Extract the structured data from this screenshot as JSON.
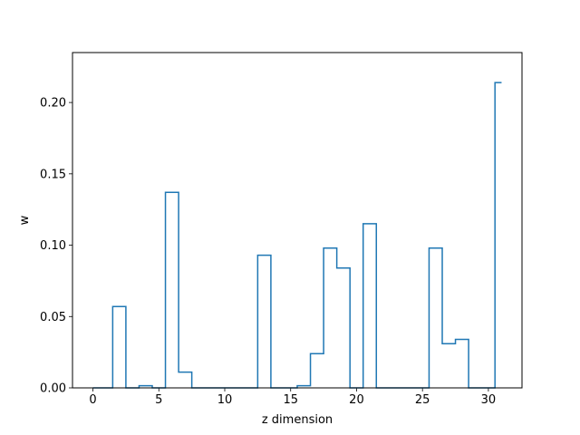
{
  "chart_data": {
    "type": "step",
    "title": "",
    "xlabel": "z dimension",
    "ylabel": "w",
    "xlim": [
      -1.55,
      32.55
    ],
    "ylim": [
      0,
      0.235
    ],
    "xticks": [
      0,
      5,
      10,
      15,
      20,
      25,
      30
    ],
    "yticks": [
      0.0,
      0.05,
      0.1,
      0.15,
      0.2
    ],
    "ytick_labels": [
      "0.00",
      "0.05",
      "0.10",
      "0.15",
      "0.20"
    ],
    "step_where": "mid",
    "line_color": "#1f77b4",
    "grid": false,
    "legend": "none",
    "x": [
      0,
      1,
      2,
      3,
      4,
      5,
      6,
      7,
      8,
      9,
      10,
      11,
      12,
      13,
      14,
      15,
      16,
      17,
      18,
      19,
      20,
      21,
      22,
      23,
      24,
      25,
      26,
      27,
      28,
      29,
      30,
      31
    ],
    "values": [
      0,
      0,
      0.057,
      0,
      0.0015,
      0,
      0.137,
      0.011,
      0,
      0,
      0,
      0,
      0,
      0.093,
      0,
      0,
      0.0015,
      0.024,
      0.098,
      0.084,
      0,
      0.115,
      0,
      0,
      0,
      0,
      0.098,
      0.031,
      0.034,
      0,
      0,
      0.214
    ]
  }
}
